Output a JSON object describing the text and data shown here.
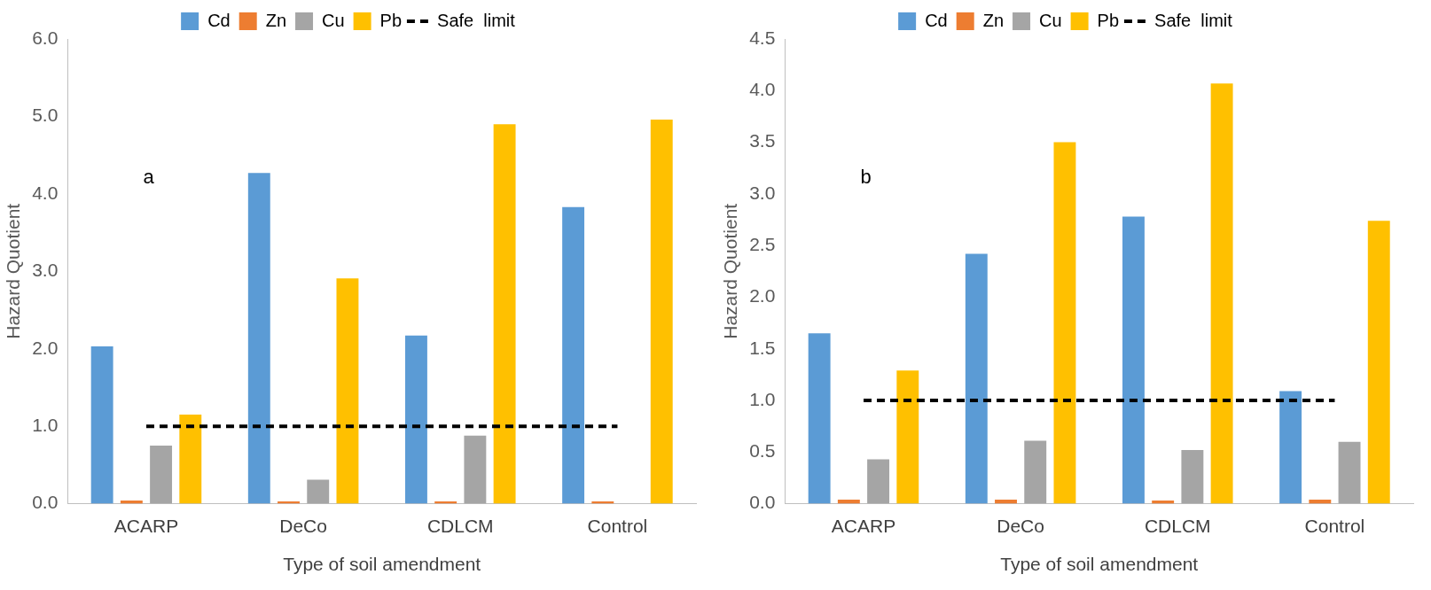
{
  "chart_data": [
    {
      "type": "bar",
      "categories": [
        "ACARP",
        "DeCo",
        "CDLCM",
        "Control"
      ],
      "xlabel": "Type of soil amendment",
      "ylabel": "Hazard Quotient",
      "ylim": [
        0,
        6
      ],
      "yticks": [
        {
          "value": 0,
          "label": "0.0"
        },
        {
          "value": 1,
          "label": "1.0"
        },
        {
          "value": 2,
          "label": "2.0"
        },
        {
          "value": 3,
          "label": "3.0"
        },
        {
          "value": 4,
          "label": "4.0"
        },
        {
          "value": 5,
          "label": "5.0"
        },
        {
          "value": 6,
          "label": "6.0"
        }
      ],
      "grid": false,
      "legend": "top",
      "annotations": [
        "a"
      ],
      "series": [
        {
          "name": "Cd",
          "color": "#5b9bd5",
          "values": [
            2.03,
            4.27,
            2.17,
            3.83
          ]
        },
        {
          "name": "Zn",
          "color": "#ed7d31",
          "values": [
            0.04,
            0.03,
            0.03,
            0.03
          ]
        },
        {
          "name": "Cu",
          "color": "#a5a5a5",
          "values": [
            0.75,
            0.31,
            0.88,
            0
          ]
        },
        {
          "name": "Pb",
          "color": "#ffc000",
          "values": [
            1.15,
            2.91,
            4.9,
            4.96
          ]
        },
        {
          "name": "Safe  limit",
          "type": "line",
          "color": "#000000",
          "line_style": "dashed",
          "marker": "none",
          "values": [
            1,
            1,
            1,
            1
          ]
        }
      ]
    },
    {
      "type": "bar",
      "categories": [
        "ACARP",
        "DeCo",
        "CDLCM",
        "Control"
      ],
      "xlabel": "Type of soil amendment",
      "ylabel": "Hazard Quotient",
      "ylim": [
        0,
        4.5
      ],
      "yticks": [
        {
          "value": 0,
          "label": "0.0"
        },
        {
          "value": 0.5,
          "label": "0.5"
        },
        {
          "value": 1,
          "label": "1.0"
        },
        {
          "value": 1.5,
          "label": "1.5"
        },
        {
          "value": 2,
          "label": "2.0"
        },
        {
          "value": 2.5,
          "label": "2.5"
        },
        {
          "value": 3,
          "label": "3.0"
        },
        {
          "value": 3.5,
          "label": "3.5"
        },
        {
          "value": 4,
          "label": "4.0"
        },
        {
          "value": 4.5,
          "label": "4.5"
        }
      ],
      "grid": false,
      "legend": "top",
      "annotations": [
        "b"
      ],
      "series": [
        {
          "name": "Cd",
          "color": "#5b9bd5",
          "values": [
            1.65,
            2.42,
            2.78,
            1.09
          ]
        },
        {
          "name": "Zn",
          "color": "#ed7d31",
          "values": [
            0.04,
            0.04,
            0.03,
            0.04
          ]
        },
        {
          "name": "Cu",
          "color": "#a5a5a5",
          "values": [
            0.43,
            0.61,
            0.52,
            0.6
          ]
        },
        {
          "name": "Pb",
          "color": "#ffc000",
          "values": [
            1.29,
            3.5,
            4.07,
            2.74
          ]
        },
        {
          "name": "Safe  limit",
          "type": "line",
          "color": "#000000",
          "line_style": "dashed",
          "marker": "none",
          "values": [
            1,
            1,
            1,
            1
          ]
        }
      ]
    }
  ]
}
